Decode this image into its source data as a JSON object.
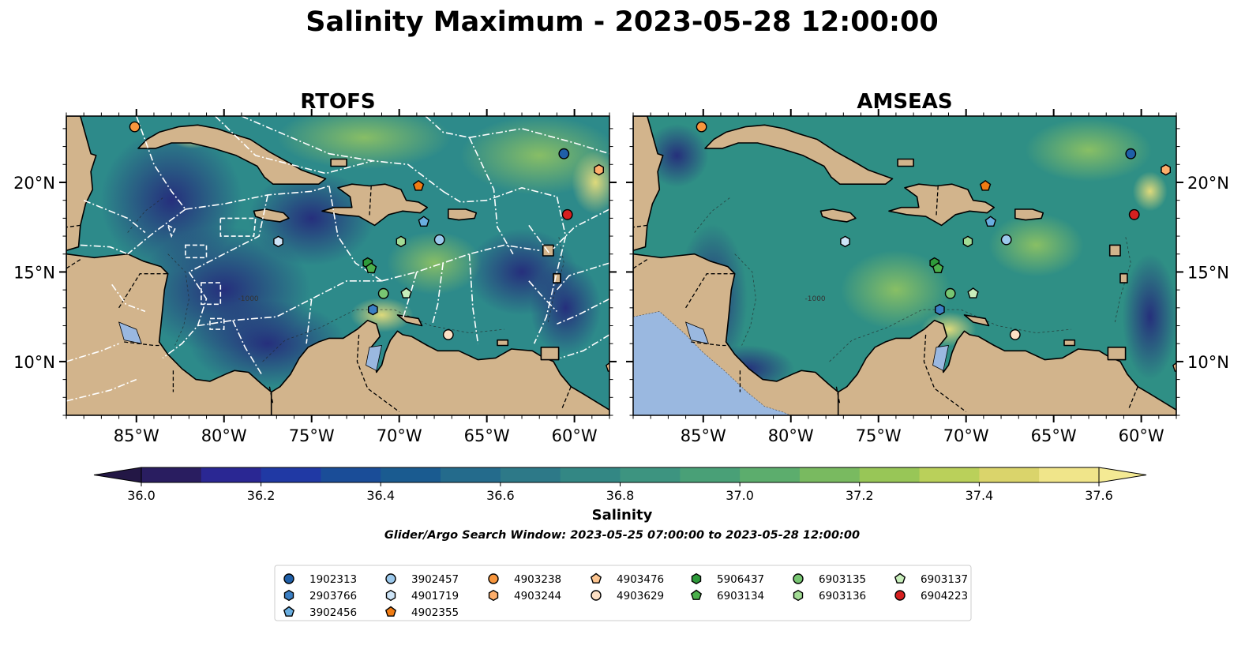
{
  "title": "Salinity Maximum - 2023-05-28 12:00:00",
  "map": {
    "extent": {
      "lon": [
        -89,
        -58
      ],
      "lat": [
        7,
        23.7
      ]
    },
    "projection": "PlateCarree",
    "lon_ticks": [
      -85,
      -80,
      -75,
      -70,
      -65,
      -60
    ],
    "lon_tick_labels": [
      "85°W",
      "80°W",
      "75°W",
      "70°W",
      "65°W",
      "60°W"
    ],
    "lat_ticks": [
      10,
      15,
      20
    ],
    "lat_tick_labels": [
      "10°N",
      "15°N",
      "20°N"
    ],
    "land_color": "#d2b48c",
    "lake_color": "#9ab8e0",
    "contour_label": "-1000"
  },
  "panels": [
    {
      "title": "RTOFS",
      "eez_boundaries": true,
      "ocean_color": "#2d8a8a"
    },
    {
      "title": "AMSEAS",
      "eez_boundaries": false,
      "ocean_color": "#2f8f85"
    }
  ],
  "colorbar": {
    "label": "Salinity",
    "min": 36.0,
    "max": 37.6,
    "step": 0.1,
    "ticks": [
      36.0,
      36.2,
      36.4,
      36.6,
      36.8,
      37.0,
      37.2,
      37.4,
      37.6
    ],
    "tick_labels": [
      "36.0",
      "36.2",
      "36.4",
      "36.6",
      "36.8",
      "37.0",
      "37.2",
      "37.4",
      "37.6"
    ],
    "extend": "both",
    "colormap": "haline"
  },
  "search_window": "Glider/Argo Search Window: 2023-05-25 07:00:00 to 2023-05-28 12:00:00",
  "floats": [
    {
      "id": "1902313",
      "marker": "circle",
      "color": "#1f5fa8",
      "lon": -60.6,
      "lat": 21.6
    },
    {
      "id": "2903766",
      "marker": "hexagon",
      "color": "#3b7fc4",
      "lon": -71.5,
      "lat": 12.9
    },
    {
      "id": "3902456",
      "marker": "pentagon",
      "color": "#6aaee0",
      "lon": -68.6,
      "lat": 17.8
    },
    {
      "id": "3902457",
      "marker": "circle",
      "color": "#9cc9ec",
      "lon": -67.7,
      "lat": 16.8
    },
    {
      "id": "4901719",
      "marker": "hexagon",
      "color": "#cde4f7",
      "lon": -76.9,
      "lat": 16.7
    },
    {
      "id": "4902355",
      "marker": "pentagon",
      "color": "#f07c14",
      "lon": -68.9,
      "lat": 19.8
    },
    {
      "id": "4903238",
      "marker": "circle",
      "color": "#f8963d",
      "lon": -85.1,
      "lat": 23.1
    },
    {
      "id": "4903244",
      "marker": "hexagon",
      "color": "#fdae6b",
      "lon": -58.6,
      "lat": 20.7
    },
    {
      "id": "4903476",
      "marker": "pentagon",
      "color": "#fdc590",
      "lon": -57.9,
      "lat": 9.7
    },
    {
      "id": "4903629",
      "marker": "circle",
      "color": "#fde0c5",
      "lon": -67.2,
      "lat": 11.5
    },
    {
      "id": "5906437",
      "marker": "hexagon",
      "color": "#2e9a3a",
      "lon": -71.8,
      "lat": 15.5
    },
    {
      "id": "6903134",
      "marker": "pentagon",
      "color": "#4cb04c",
      "lon": -71.6,
      "lat": 15.2
    },
    {
      "id": "6903135",
      "marker": "circle",
      "color": "#78c672",
      "lon": -70.9,
      "lat": 13.8
    },
    {
      "id": "6903136",
      "marker": "hexagon",
      "color": "#a3dc95",
      "lon": -69.9,
      "lat": 16.7
    },
    {
      "id": "6903137",
      "marker": "pentagon",
      "color": "#c8eebb",
      "lon": -69.6,
      "lat": 13.8
    },
    {
      "id": "6904223",
      "marker": "circle",
      "color": "#d62020",
      "lon": -60.4,
      "lat": 18.2
    }
  ]
}
